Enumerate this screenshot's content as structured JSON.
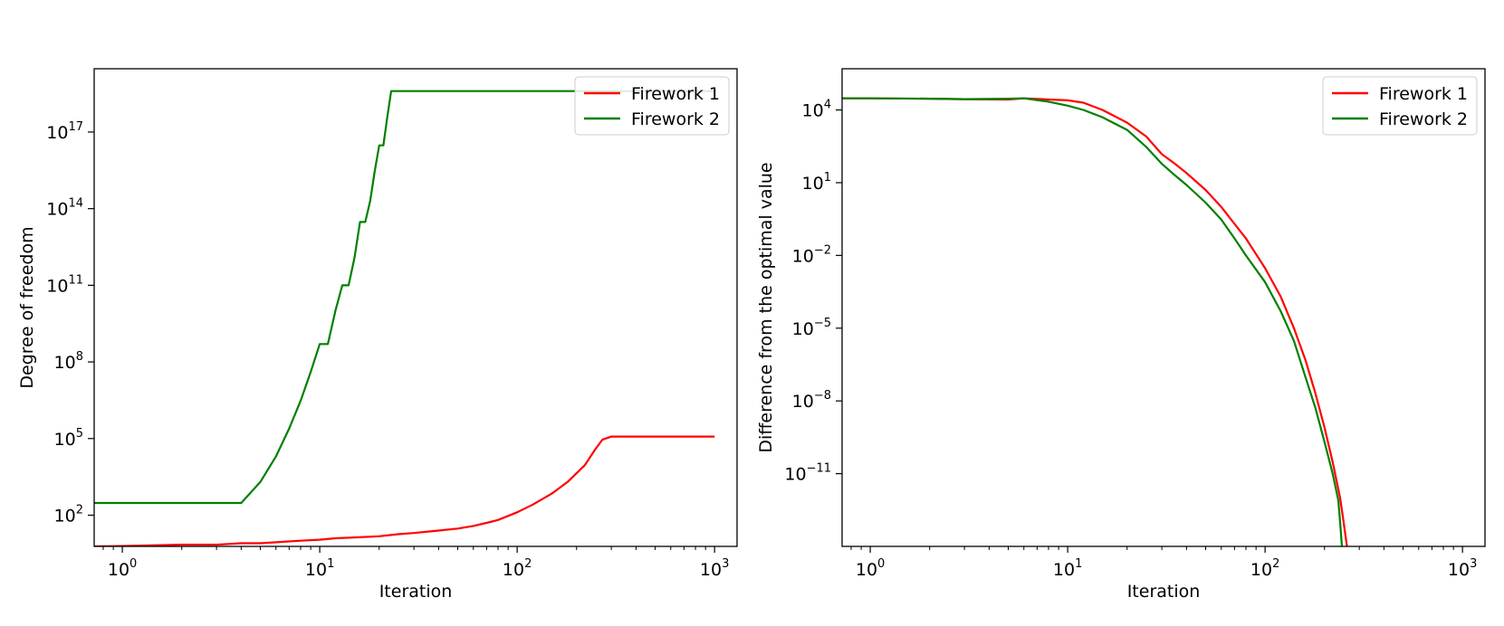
{
  "chart_data": [
    {
      "type": "line",
      "xlabel": "Iteration",
      "ylabel": "Degree of freedom",
      "xscale": "log",
      "yscale": "log",
      "xlim": [
        0.72,
        1300
      ],
      "ylim": [
        6,
        3e+19
      ],
      "xticks": [
        {
          "base": "10",
          "exp": "0",
          "value": 1
        },
        {
          "base": "10",
          "exp": "1",
          "value": 10
        },
        {
          "base": "10",
          "exp": "2",
          "value": 100
        },
        {
          "base": "10",
          "exp": "3",
          "value": 1000
        }
      ],
      "yticks": [
        {
          "base": "10",
          "exp": "2",
          "value": 100.0
        },
        {
          "base": "10",
          "exp": "5",
          "value": 100000.0
        },
        {
          "base": "10",
          "exp": "8",
          "value": 100000000.0
        },
        {
          "base": "10",
          "exp": "11",
          "value": 100000000000.0
        },
        {
          "base": "10",
          "exp": "14",
          "value": 100000000000000.0
        },
        {
          "base": "10",
          "exp": "17",
          "value": 1e+17
        }
      ],
      "grid": false,
      "legend": "upper right",
      "series": [
        {
          "name": "Firework 1",
          "color": "#ff0000",
          "x": [
            0.72,
            1,
            2,
            3,
            4,
            5,
            8,
            10,
            12,
            15,
            20,
            25,
            30,
            40,
            50,
            60,
            70,
            80,
            100,
            120,
            150,
            180,
            220,
            250,
            270,
            300,
            400,
            600,
            1000
          ],
          "y": [
            6,
            6.2,
            7,
            7,
            8,
            8,
            10,
            11,
            12.5,
            13.5,
            15,
            18,
            20,
            25,
            30,
            38,
            50,
            65,
            130,
            260,
            700,
            2000,
            9000,
            40000,
            90000,
            120000,
            120000,
            120000,
            120000
          ]
        },
        {
          "name": "Firework 2",
          "color": "#008000",
          "x": [
            0.72,
            1,
            2,
            3,
            4,
            5,
            6,
            7,
            8,
            9,
            10,
            11,
            12,
            13,
            14,
            15,
            16,
            17,
            18,
            19,
            20,
            21,
            22,
            23,
            24,
            25,
            30,
            50,
            100,
            300,
            1000
          ],
          "y": [
            300,
            300,
            300,
            300,
            300,
            2000,
            20000,
            250000,
            3000000,
            40000000,
            500000000,
            500000000,
            10000000000.0,
            100000000000.0,
            100000000000.0,
            1200000000000.0,
            30000000000000.0,
            30000000000000.0,
            200000000000000.0,
            3000000000000000.0,
            3e+16,
            3e+16,
            4e+17,
            4e+18,
            4e+18,
            4e+18,
            4e+18,
            4e+18,
            4e+18,
            4e+18,
            4e+18
          ]
        }
      ]
    },
    {
      "type": "line",
      "xlabel": "Iteration",
      "ylabel": "Difference from the optimal value",
      "xscale": "log",
      "yscale": "log",
      "xlim": [
        0.72,
        1300
      ],
      "ylim": [
        1e-14,
        500000.0
      ],
      "xticks": [
        {
          "base": "10",
          "exp": "0",
          "value": 1
        },
        {
          "base": "10",
          "exp": "1",
          "value": 10
        },
        {
          "base": "10",
          "exp": "2",
          "value": 100
        },
        {
          "base": "10",
          "exp": "3",
          "value": 1000
        }
      ],
      "yticks": [
        {
          "base": "10",
          "exp": "−11",
          "value": 1e-11
        },
        {
          "base": "10",
          "exp": "−8",
          "value": 1e-08
        },
        {
          "base": "10",
          "exp": "−5",
          "value": 1e-05
        },
        {
          "base": "10",
          "exp": "−2",
          "value": 0.01
        },
        {
          "base": "10",
          "exp": "1",
          "value": 10
        },
        {
          "base": "10",
          "exp": "4",
          "value": 10000.0
        }
      ],
      "grid": false,
      "legend": "upper right",
      "series": [
        {
          "name": "Firework 1",
          "color": "#ff0000",
          "x": [
            0.72,
            1,
            2,
            3,
            5,
            6,
            8,
            10,
            12,
            15,
            20,
            25,
            30,
            35,
            40,
            50,
            60,
            70,
            80,
            100,
            120,
            140,
            160,
            180,
            200,
            220,
            240,
            250,
            255,
            260
          ],
          "y": [
            30000,
            30000,
            29000,
            28000,
            27000,
            30000,
            27000,
            25000,
            20000,
            10000,
            3000,
            800,
            150,
            60,
            25,
            5,
            1,
            0.2,
            0.05,
            0.003,
            0.0002,
            1e-05,
            5e-07,
            2e-08,
            8e-10,
            3e-11,
            1e-12,
            1e-13,
            3e-14,
            1e-14
          ]
        },
        {
          "name": "Firework 2",
          "color": "#008000",
          "x": [
            0.72,
            1,
            2,
            3,
            5,
            6,
            8,
            10,
            12,
            15,
            20,
            25,
            30,
            35,
            40,
            50,
            60,
            70,
            80,
            100,
            120,
            140,
            160,
            180,
            200,
            220,
            235,
            240,
            245
          ],
          "y": [
            30000,
            30000,
            29000,
            28000,
            29000,
            30000,
            22000,
            15000,
            10000,
            5000,
            1500,
            300,
            60,
            20,
            8,
            1.5,
            0.3,
            0.05,
            0.01,
            0.0008,
            5e-05,
            3e-06,
            1e-07,
            5e-09,
            2e-10,
            1e-11,
            8e-13,
            1e-13,
            1e-14
          ]
        }
      ]
    }
  ]
}
